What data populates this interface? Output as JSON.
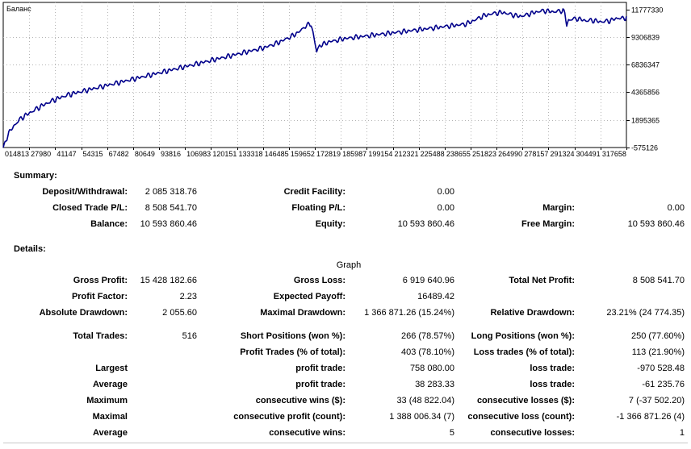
{
  "chart_data": {
    "type": "line",
    "title": "Баланс",
    "series": [
      {
        "name": "Баланс",
        "color": "#00008b"
      }
    ],
    "y_ticks": [
      "11777330",
      "9306839",
      "6836347",
      "4365856",
      "1895365",
      "-575126"
    ],
    "ylim": [
      -575126,
      12400000
    ],
    "x_ticks": [
      "014813",
      "27980",
      "41147",
      "54315",
      "67482",
      "80649",
      "93816",
      "106983",
      "120151",
      "133318",
      "146485",
      "159652",
      "172819",
      "185987",
      "199154",
      "212321",
      "225488",
      "238655",
      "251823",
      "264990",
      "278157",
      "291324",
      "304491",
      "317658"
    ],
    "grid": "dotted",
    "points": [
      [
        0,
        -575126
      ],
      [
        5,
        700000
      ],
      [
        10,
        1300000
      ],
      [
        15,
        1800000
      ],
      [
        20,
        2200000
      ],
      [
        25,
        2450000
      ],
      [
        30,
        2700000
      ],
      [
        35,
        2950000
      ],
      [
        40,
        3200000
      ],
      [
        45,
        3400000
      ],
      [
        50,
        3600000
      ],
      [
        55,
        3800000
      ],
      [
        60,
        3950000
      ],
      [
        65,
        4100000
      ],
      [
        70,
        4250000
      ],
      [
        75,
        4350000
      ],
      [
        80,
        4450000
      ],
      [
        85,
        4550000
      ],
      [
        90,
        4650000
      ],
      [
        95,
        4750000
      ],
      [
        100,
        4850000
      ],
      [
        105,
        4950000
      ],
      [
        110,
        5050000
      ],
      [
        115,
        5150000
      ],
      [
        120,
        5250000
      ],
      [
        125,
        5350000
      ],
      [
        130,
        5450000
      ],
      [
        135,
        5550000
      ],
      [
        140,
        5650000
      ],
      [
        145,
        5750000
      ],
      [
        150,
        5850000
      ],
      [
        155,
        5950000
      ],
      [
        160,
        6050000
      ],
      [
        165,
        6150000
      ],
      [
        170,
        6250000
      ],
      [
        175,
        6350000
      ],
      [
        180,
        6450000
      ],
      [
        185,
        6550000
      ],
      [
        190,
        6650000
      ],
      [
        195,
        6750000
      ],
      [
        200,
        6850000
      ],
      [
        205,
        6950000
      ],
      [
        210,
        7050000
      ],
      [
        215,
        7150000
      ],
      [
        220,
        7250000
      ],
      [
        225,
        7350000
      ],
      [
        230,
        7450000
      ],
      [
        235,
        7550000
      ],
      [
        240,
        7650000
      ],
      [
        245,
        7750000
      ],
      [
        250,
        7850000
      ],
      [
        255,
        7950000
      ],
      [
        260,
        8050000
      ],
      [
        265,
        8150000
      ],
      [
        270,
        8250000
      ],
      [
        275,
        8350000
      ],
      [
        280,
        8450000
      ],
      [
        285,
        8600000
      ],
      [
        290,
        8750000
      ],
      [
        295,
        8900000
      ],
      [
        300,
        9100000
      ],
      [
        305,
        9300000
      ],
      [
        310,
        9500000
      ],
      [
        315,
        9750000
      ],
      [
        320,
        10050000
      ],
      [
        325,
        10450000
      ],
      [
        330,
        10550000
      ],
      [
        333,
        9400000
      ],
      [
        336,
        8050000
      ],
      [
        339,
        8650000
      ],
      [
        345,
        8800000
      ],
      [
        350,
        9000000
      ],
      [
        355,
        9050000
      ],
      [
        360,
        9150000
      ],
      [
        365,
        9250000
      ],
      [
        370,
        9300000
      ],
      [
        375,
        9350000
      ],
      [
        380,
        9400000
      ],
      [
        385,
        9450000
      ],
      [
        390,
        9500000
      ],
      [
        395,
        9550000
      ],
      [
        400,
        9600000
      ],
      [
        405,
        9650000
      ],
      [
        410,
        9700000
      ],
      [
        415,
        9750000
      ],
      [
        420,
        9800000
      ],
      [
        425,
        9850000
      ],
      [
        430,
        9900000
      ],
      [
        435,
        9950000
      ],
      [
        440,
        10000000
      ],
      [
        445,
        10050000
      ],
      [
        450,
        10100000
      ],
      [
        455,
        10150000
      ],
      [
        460,
        10200000
      ],
      [
        465,
        10250000
      ],
      [
        470,
        10300000
      ],
      [
        475,
        10350000
      ],
      [
        480,
        10400000
      ],
      [
        485,
        10450000
      ],
      [
        490,
        10500000
      ],
      [
        495,
        10550000
      ],
      [
        500,
        10700000
      ],
      [
        505,
        10900000
      ],
      [
        510,
        11100000
      ],
      [
        515,
        11300000
      ],
      [
        520,
        11400000
      ],
      [
        525,
        11500000
      ],
      [
        530,
        11550000
      ],
      [
        535,
        11600000
      ],
      [
        540,
        11500000
      ],
      [
        545,
        11400000
      ],
      [
        550,
        11300000
      ],
      [
        555,
        11250000
      ],
      [
        560,
        11350000
      ],
      [
        565,
        11500000
      ],
      [
        570,
        11600000
      ],
      [
        575,
        11700000
      ],
      [
        580,
        11750000
      ],
      [
        585,
        11700000
      ],
      [
        590,
        11650000
      ],
      [
        595,
        11700000
      ],
      [
        600,
        11780000
      ],
      [
        602,
        11500000
      ],
      [
        604,
        10450000
      ],
      [
        606,
        10900000
      ],
      [
        610,
        11000000
      ],
      [
        615,
        11050000
      ],
      [
        620,
        10950000
      ],
      [
        625,
        10850000
      ],
      [
        630,
        10900000
      ],
      [
        635,
        10850000
      ],
      [
        640,
        10750000
      ],
      [
        645,
        10800000
      ],
      [
        650,
        10850000
      ],
      [
        655,
        11000000
      ],
      [
        660,
        11100000
      ],
      [
        665,
        11050000
      ],
      [
        668,
        11150000
      ]
    ]
  },
  "summary": {
    "heading": "Summary:",
    "rows": [
      [
        "Deposit/Withdrawal:",
        "2 085 318.76",
        "Credit Facility:",
        "0.00",
        "",
        ""
      ],
      [
        "Closed Trade P/L:",
        "8 508 541.70",
        "Floating P/L:",
        "0.00",
        "Margin:",
        "0.00"
      ],
      [
        "Balance:",
        "10 593 860.46",
        "Equity:",
        "10 593 860.46",
        "Free Margin:",
        "10 593 860.46"
      ]
    ]
  },
  "details": {
    "heading": "Details:",
    "graph_link": "Graph",
    "rows": [
      [
        "Gross Profit:",
        "15 428 182.66",
        "Gross Loss:",
        "6 919 640.96",
        "Total Net Profit:",
        "8 508 541.70"
      ],
      [
        "Profit Factor:",
        "2.23",
        "Expected Payoff:",
        "16489.42",
        "",
        ""
      ],
      [
        "Absolute Drawdown:",
        "2 055.60",
        "Maximal Drawdown:",
        "1 366 871.26 (15.24%)",
        "Relative Drawdown:",
        "23.21% (24 774.35)"
      ],
      [
        "Total Trades:",
        "516",
        "Short Positions (won %):",
        "266 (78.57%)",
        "Long Positions (won %):",
        "250 (77.60%)"
      ],
      [
        "",
        "",
        "Profit Trades (% of total):",
        "403 (78.10%)",
        "Loss trades (% of total):",
        "113 (21.90%)"
      ],
      [
        "Largest",
        "",
        "profit trade:",
        "758 080.00",
        "loss trade:",
        "-970 528.48"
      ],
      [
        "Average",
        "",
        "profit trade:",
        "38 283.33",
        "loss trade:",
        "-61 235.76"
      ],
      [
        "Maximum",
        "",
        "consecutive wins ($):",
        "33 (48 822.04)",
        "consecutive losses ($):",
        "7 (-37 502.20)"
      ],
      [
        "Maximal",
        "",
        "consecutive profit (count):",
        "1 388 006.34 (7)",
        "consecutive loss (count):",
        "-1 366 871.26 (4)"
      ],
      [
        "Average",
        "",
        "consecutive wins:",
        "5",
        "consecutive losses:",
        "1"
      ]
    ]
  }
}
